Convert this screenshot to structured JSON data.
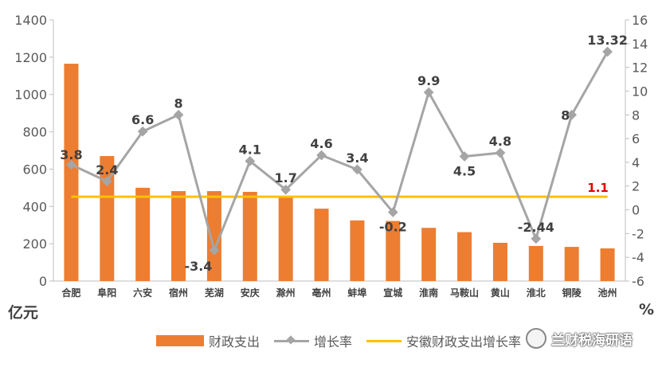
{
  "chart_data": {
    "type": "bar",
    "categories": [
      "合肥",
      "阜阳",
      "六安",
      "宿州",
      "芜湖",
      "安庆",
      "滁州",
      "亳州",
      "蚌埠",
      "宣城",
      "淮南",
      "马鞍山",
      "黄山",
      "淮北",
      "铜陵",
      "池州"
    ],
    "series": [
      {
        "name": "财政支出",
        "type": "bar",
        "axis": "left",
        "values": [
          1165,
          670,
          500,
          482,
          482,
          478,
          448,
          388,
          325,
          322,
          285,
          262,
          205,
          188,
          183,
          175
        ]
      },
      {
        "name": "增长率",
        "type": "line",
        "axis": "right",
        "values": [
          3.8,
          2.4,
          6.6,
          8,
          -3.4,
          4.1,
          1.7,
          4.6,
          3.4,
          -0.2,
          9.9,
          4.5,
          4.8,
          -2.44,
          8,
          13.32
        ],
        "labels": [
          "3.8",
          "2.4",
          "6.6",
          "8",
          "-3.4",
          "4.1",
          "1.7",
          "4.6",
          "3.4",
          "-0.2",
          "9.9",
          "4.5",
          "4.8",
          "-2.44",
          "8",
          "13.32"
        ]
      },
      {
        "name": "安徽财政支出增长率",
        "type": "reference_line",
        "axis": "right",
        "value": 1.1,
        "label": "1.1"
      }
    ],
    "yleft": {
      "unit": "亿元",
      "range": [
        0,
        1400
      ],
      "ticks": [
        "0",
        "200",
        "400",
        "600",
        "800",
        "1000",
        "1200",
        "1400"
      ]
    },
    "yright": {
      "unit": "%",
      "range": [
        -6,
        16
      ],
      "ticks": [
        "-6",
        "-4",
        "-2",
        "0",
        "2",
        "4",
        "6",
        "8",
        "10",
        "12",
        "14",
        "16"
      ]
    },
    "colors": {
      "bar": "#ED7D31",
      "line": "#A5A5A5",
      "ref": "#FFC000",
      "ref_label": "#E00000",
      "text": "#595959"
    },
    "grid": false,
    "legend_position": "bottom"
  },
  "legend": {
    "bar": "财政支出",
    "line": "增长率",
    "ref": "安徽财政支出增长率"
  },
  "watermark": "兰财税海研语"
}
